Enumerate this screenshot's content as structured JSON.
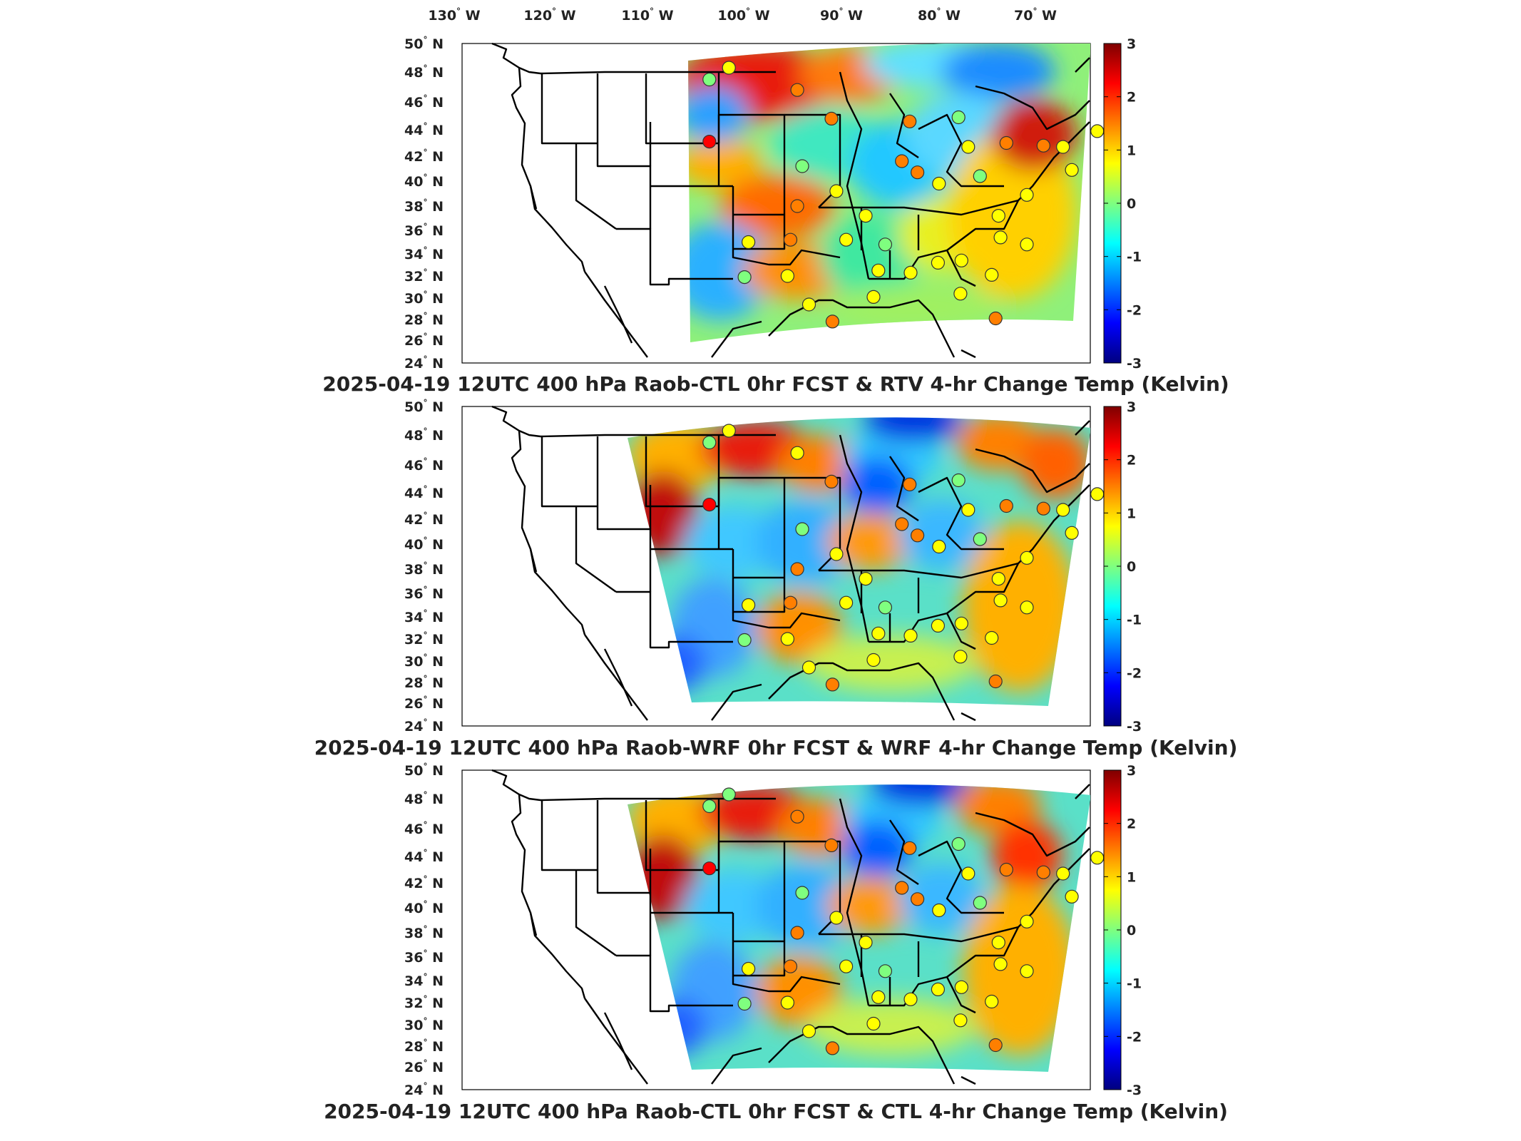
{
  "figure": {
    "top_lon_labels": [
      "130",
      "120",
      "110",
      "100",
      "90",
      "80",
      "70"
    ],
    "lon_hemisphere": "W",
    "lat_labels": [
      "50",
      "48",
      "46",
      "44",
      "42",
      "40",
      "38",
      "36",
      "34",
      "32",
      "30",
      "28",
      "26",
      "24"
    ],
    "lat_hemisphere": "N",
    "degree_symbol": "°",
    "colorbar_ticks": [
      "3",
      "2",
      "1",
      "0",
      "-1",
      "-2",
      "-3"
    ],
    "colorscale": [
      "#00007f",
      "#0000ff",
      "#007fff",
      "#00ffff",
      "#7fff7f",
      "#ffff00",
      "#ff7f00",
      "#ff0000",
      "#7f0000"
    ],
    "panels": [
      {
        "id": "panel1",
        "title": "2025-04-19 12UTC 400 hPa Raob-CTL 0hr FCST & RTV 4-hr Change Temp (Kelvin)"
      },
      {
        "id": "panel2",
        "title": "2025-04-19 12UTC 400 hPa Raob-WRF 0hr FCST & WRF 4-hr Change Temp (Kelvin)"
      },
      {
        "id": "panel3",
        "title": "2025-04-19 12UTC 400 hPa Raob-CTL 0hr FCST & CTL 4-hr Change Temp (Kelvin)"
      }
    ]
  },
  "chart_data": {
    "type": "heatmap",
    "variable": "Temp (Kelvin)",
    "level": "400 hPa",
    "datetime": "2025-04-19 12UTC",
    "colorbar_range": [
      -3,
      3
    ],
    "lon_range": [
      -130,
      -65
    ],
    "lat_range": [
      24,
      50
    ],
    "raob_stations": [
      {
        "lon": -110,
        "lat": 47.5,
        "v": [
          0.3,
          0.2,
          0.2
        ]
      },
      {
        "lon": -108,
        "lat": 48.3,
        "v": [
          0.9,
          0.4,
          0.3
        ]
      },
      {
        "lon": -101,
        "lat": 46.8,
        "v": [
          1.3,
          1.1,
          1.2
        ]
      },
      {
        "lon": -110,
        "lat": 43.1,
        "v": [
          2.4,
          2.2,
          2.2
        ]
      },
      {
        "lon": -100.5,
        "lat": 41.2,
        "v": [
          0.2,
          0.3,
          0.3
        ]
      },
      {
        "lon": -97.5,
        "lat": 44.8,
        "v": [
          1.4,
          1.5,
          1.5
        ]
      },
      {
        "lon": -101,
        "lat": 38.0,
        "v": [
          1.3,
          1.3,
          1.3
        ]
      },
      {
        "lon": -97,
        "lat": 39.2,
        "v": [
          0.8,
          0.8,
          0.8
        ]
      },
      {
        "lon": -94,
        "lat": 37.2,
        "v": [
          1.0,
          1.1,
          1.0
        ]
      },
      {
        "lon": -96,
        "lat": 35.2,
        "v": [
          0.9,
          0.9,
          0.9
        ]
      },
      {
        "lon": -101.7,
        "lat": 35.2,
        "v": [
          1.4,
          1.5,
          1.4
        ]
      },
      {
        "lon": -106,
        "lat": 35.0,
        "v": [
          0.9,
          0.8,
          0.9
        ]
      },
      {
        "lon": -106.4,
        "lat": 31.9,
        "v": [
          0.3,
          0.3,
          0.3
        ]
      },
      {
        "lon": -102,
        "lat": 32.0,
        "v": [
          0.5,
          0.5,
          0.5
        ]
      },
      {
        "lon": -99.8,
        "lat": 29.4,
        "v": [
          0.6,
          0.6,
          0.6
        ]
      },
      {
        "lon": -97.4,
        "lat": 27.8,
        "v": [
          1.5,
          1.5,
          1.5
        ]
      },
      {
        "lon": -92.7,
        "lat": 32.5,
        "v": [
          0.9,
          0.9,
          0.9
        ]
      },
      {
        "lon": -92,
        "lat": 34.8,
        "v": [
          0.2,
          0.2,
          0.2
        ]
      },
      {
        "lon": -89.4,
        "lat": 32.3,
        "v": [
          0.6,
          0.6,
          0.6
        ]
      },
      {
        "lon": -93.2,
        "lat": 30.1,
        "v": [
          1.0,
          1.0,
          1.0
        ]
      },
      {
        "lon": -86.6,
        "lat": 33.2,
        "v": [
          0.4,
          0.4,
          0.4
        ]
      },
      {
        "lon": -84.2,
        "lat": 33.4,
        "v": [
          0.8,
          0.8,
          0.8
        ]
      },
      {
        "lon": -84.3,
        "lat": 30.4,
        "v": [
          1.0,
          1.0,
          1.0
        ]
      },
      {
        "lon": -80.7,
        "lat": 28.1,
        "v": [
          1.3,
          1.3,
          1.3
        ]
      },
      {
        "lon": -81.1,
        "lat": 32.1,
        "v": [
          0.8,
          0.8,
          0.8
        ]
      },
      {
        "lon": -80.2,
        "lat": 35.4,
        "v": [
          0.6,
          0.6,
          0.6
        ]
      },
      {
        "lon": -77.5,
        "lat": 34.8,
        "v": [
          0.7,
          0.7,
          0.7
        ]
      },
      {
        "lon": -80.4,
        "lat": 37.2,
        "v": [
          0.4,
          0.4,
          0.4
        ]
      },
      {
        "lon": -77.5,
        "lat": 38.9,
        "v": [
          0.5,
          0.5,
          0.5
        ]
      },
      {
        "lon": -86.5,
        "lat": 39.8,
        "v": [
          0.5,
          0.5,
          0.5
        ]
      },
      {
        "lon": -88.7,
        "lat": 40.7,
        "v": [
          1.2,
          1.2,
          1.2
        ]
      },
      {
        "lon": -90.3,
        "lat": 41.6,
        "v": [
          1.4,
          1.5,
          1.4
        ]
      },
      {
        "lon": -83.5,
        "lat": 42.7,
        "v": [
          0.4,
          0.4,
          0.4
        ]
      },
      {
        "lon": -84.5,
        "lat": 44.9,
        "v": [
          0.3,
          0.3,
          0.3
        ]
      },
      {
        "lon": -89.5,
        "lat": 44.6,
        "v": [
          1.3,
          1.3,
          1.3
        ]
      },
      {
        "lon": -82.3,
        "lat": 40.4,
        "v": [
          0.3,
          0.3,
          0.3
        ]
      },
      {
        "lon": -79.6,
        "lat": 43.0,
        "v": [
          1.2,
          1.2,
          1.2
        ]
      },
      {
        "lon": -75.8,
        "lat": 42.8,
        "v": [
          1.2,
          1.4,
          1.3
        ]
      },
      {
        "lon": -73.8,
        "lat": 42.7,
        "v": [
          0.8,
          0.8,
          0.8
        ]
      },
      {
        "lon": -70.3,
        "lat": 43.9,
        "v": [
          0.6,
          0.6,
          0.6
        ]
      },
      {
        "lon": -72.9,
        "lat": 40.9,
        "v": [
          0.6,
          0.6,
          0.6
        ]
      }
    ]
  }
}
